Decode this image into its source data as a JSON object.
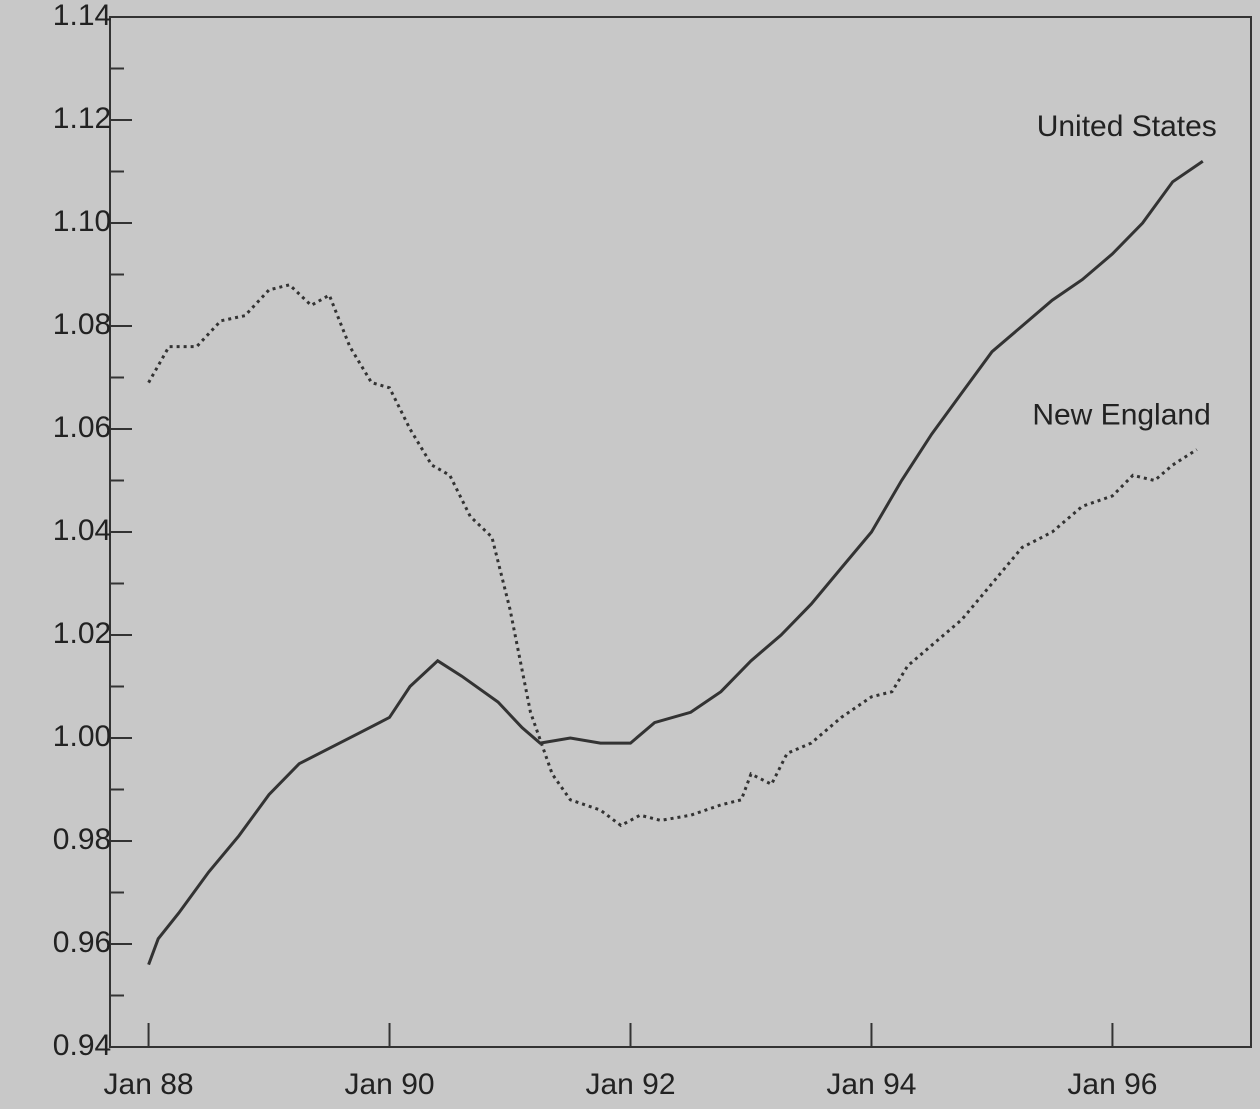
{
  "chart_data": {
    "type": "line",
    "xlim": [
      1987.68,
      1997.15
    ],
    "ylim": [
      0.94,
      1.14
    ],
    "xticks": [
      {
        "value": 1988,
        "label": "Jan 88"
      },
      {
        "value": 1990,
        "label": "Jan 90"
      },
      {
        "value": 1992,
        "label": "Jan 92"
      },
      {
        "value": 1994,
        "label": "Jan 94"
      },
      {
        "value": 1996,
        "label": "Jan 96"
      }
    ],
    "yticks": [
      {
        "value": 0.94,
        "label": "0.94"
      },
      {
        "value": 0.96,
        "label": "0.96"
      },
      {
        "value": 0.98,
        "label": "0.98"
      },
      {
        "value": 1.0,
        "label": "1.00"
      },
      {
        "value": 1.02,
        "label": "1.02"
      },
      {
        "value": 1.04,
        "label": "1.04"
      },
      {
        "value": 1.06,
        "label": "1.06"
      },
      {
        "value": 1.08,
        "label": "1.08"
      },
      {
        "value": 1.1,
        "label": "1.10"
      },
      {
        "value": 1.12,
        "label": "1.12"
      },
      {
        "value": 1.14,
        "label": "1.14"
      }
    ],
    "yminor_ticks": [
      0.95,
      0.97,
      0.99,
      1.01,
      1.03,
      1.05,
      1.07,
      1.09,
      1.11,
      1.13
    ],
    "series": [
      {
        "name": "United States",
        "color": "#333333",
        "style": "solid",
        "x": [
          1988.0,
          1988.08,
          1988.25,
          1988.5,
          1988.75,
          1989.0,
          1989.25,
          1989.5,
          1989.75,
          1990.0,
          1990.17,
          1990.4,
          1990.6,
          1990.9,
          1991.1,
          1991.25,
          1991.5,
          1991.75,
          1992.0,
          1992.2,
          1992.5,
          1992.75,
          1993.0,
          1993.25,
          1993.5,
          1993.75,
          1994.0,
          1994.25,
          1994.5,
          1994.75,
          1995.0,
          1995.25,
          1995.5,
          1995.75,
          1996.0,
          1996.25,
          1996.5,
          1996.75
        ],
        "values": [
          0.956,
          0.961,
          0.966,
          0.974,
          0.981,
          0.989,
          0.995,
          0.998,
          1.001,
          1.004,
          1.01,
          1.015,
          1.012,
          1.007,
          1.002,
          0.999,
          1.0,
          0.999,
          0.999,
          1.003,
          1.005,
          1.009,
          1.015,
          1.02,
          1.026,
          1.033,
          1.04,
          1.05,
          1.059,
          1.067,
          1.075,
          1.08,
          1.085,
          1.089,
          1.094,
          1.1,
          1.108,
          1.112
        ]
      },
      {
        "name": "New England",
        "color": "#333333",
        "style": "dotted",
        "x": [
          1988.0,
          1988.17,
          1988.4,
          1988.6,
          1988.8,
          1989.0,
          1989.17,
          1989.35,
          1989.5,
          1989.67,
          1989.85,
          1990.0,
          1990.17,
          1990.35,
          1990.5,
          1990.67,
          1990.85,
          1991.0,
          1991.17,
          1991.35,
          1991.5,
          1991.75,
          1991.92,
          1992.08,
          1992.25,
          1992.5,
          1992.75,
          1992.92,
          1993.0,
          1993.17,
          1993.3,
          1993.5,
          1993.75,
          1994.0,
          1994.17,
          1994.3,
          1994.5,
          1994.75,
          1995.0,
          1995.25,
          1995.5,
          1995.75,
          1996.0,
          1996.17,
          1996.35,
          1996.5,
          1996.7
        ],
        "values": [
          1.069,
          1.076,
          1.076,
          1.081,
          1.082,
          1.087,
          1.088,
          1.084,
          1.086,
          1.076,
          1.069,
          1.068,
          1.06,
          1.053,
          1.051,
          1.043,
          1.039,
          1.025,
          1.005,
          0.993,
          0.988,
          0.986,
          0.983,
          0.985,
          0.984,
          0.985,
          0.987,
          0.988,
          0.993,
          0.991,
          0.997,
          0.999,
          1.004,
          1.008,
          1.009,
          1.014,
          1.018,
          1.023,
          1.03,
          1.037,
          1.04,
          1.045,
          1.047,
          1.051,
          1.05,
          1.053,
          1.056
        ]
      }
    ]
  }
}
